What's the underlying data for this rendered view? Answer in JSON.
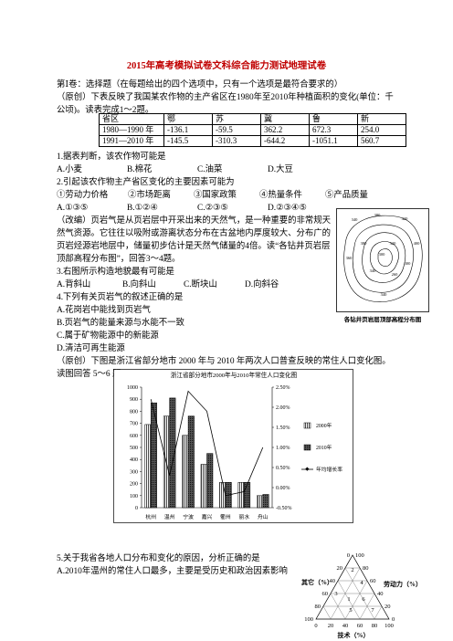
{
  "header": {
    "title": "2015年高考模拟试卷文科综合能力测试地理试卷"
  },
  "section": "第Ⅰ卷：选择题（在每题给出的四个选项中，只有一个选项是最符合要求的）",
  "intro1": "（原创）下表反映了我国某农作物的主产省区在1980年至2010年种植面积的变化(单位：千公顷)。读表完成1～2题。",
  "table": {
    "rows": [
      [
        "省区",
        "鄂",
        "苏",
        "冀",
        "鲁",
        "新"
      ],
      [
        "1980—1990 年",
        "-136.1",
        "-59.5",
        "362.2",
        "672.3",
        "254.0"
      ],
      [
        "1991—2010 年",
        "-145.5",
        "-310.3",
        "-644.2",
        "-1051.1",
        "560.7"
      ]
    ]
  },
  "questions": [
    {
      "stem": "1.据表判断，该农作物可能是",
      "options": [
        "A.小麦",
        "B.棉花",
        "C.油菜",
        "D.大豆"
      ]
    },
    {
      "stem": "2.引起该农作物主产省区变化的主要因素可能为",
      "items": [
        "①劳动力价格",
        "②市场距离",
        "③国家政策",
        "④热量条件",
        "⑤产品质量"
      ],
      "options": [
        "A.①③⑤",
        "B.①②④",
        "C.②③⑤",
        "D.②③④⑤"
      ]
    },
    {
      "stem": "3.右图所示构造地貌最有可能是",
      "options": [
        "A.背斜山",
        "B.向斜山",
        "C.断块山",
        "D.向斜谷"
      ]
    },
    {
      "stem": "4.下列有关页岩气的叙述正确的是",
      "options": [
        "A.花岗岩中能找到页岩气",
        "B.页岩气的能量来源与水能不一致",
        "C.属于矿物能源中的新能源",
        "D.清洁可再生能源"
      ]
    },
    {
      "stem": "5.关于我省各地人口分布和变化的原因，分析正确的是",
      "options": [
        "A.2010年温州的常住人口最多，主要是受历史和政治因素影响"
      ]
    }
  ],
  "intro2": "（改编）页岩气是从页岩层中开采出来的天然气，是一种重要的非常规天然气资源。它往往以吸附或游离状态分布在古盆地内厚度较大、分布广的页岩烃源岩地层中，储量初步估计是天然气储量的4倍。读“各钻井页岩层顶部高程分布图”，回答3～4题。",
  "intro3": "（原创）下图是浙江省部分地市 2000 年与 2010 年两次人口普查反映的常住人口变化图。读图回答 5～6 题。",
  "map": {
    "caption": "各钻井页岩层顶部高程分布图",
    "contour_labels": [
      "340",
      "380",
      "420",
      "400",
      "360",
      "300",
      "320",
      "380",
      "340",
      "260",
      "300",
      "340"
    ]
  },
  "chart": {
    "type": "bar",
    "title": "浙江省部分地市2000年与2010年常住人口变化图",
    "categories": [
      "杭州",
      "温州",
      "宁波",
      "嘉兴",
      "衢州",
      "丽水",
      "舟山"
    ],
    "series": [
      {
        "name": "2000年",
        "values": [
          690,
          760,
          600,
          360,
          210,
          210,
          100
        ]
      },
      {
        "name": "2010年",
        "values": [
          870,
          910,
          760,
          450,
          210,
          210,
          110
        ]
      },
      {
        "name": "年均增长率",
        "axis": "y2",
        "values": [
          2.2,
          0.3,
          2.4,
          1.9,
          -0.2,
          -0.1,
          1.0
        ]
      }
    ],
    "ylim": [
      0,
      1000
    ],
    "yticks": [
      0,
      100,
      200,
      300,
      400,
      500,
      600,
      700,
      800,
      900,
      1000
    ],
    "y2lim": [
      -0.5,
      2.5
    ],
    "y2ticks": [
      {
        "value": -0.5,
        "label": "-0.50%"
      },
      {
        "value": 0,
        "label": "0.00%"
      },
      {
        "value": 0.5,
        "label": "0.50%"
      },
      {
        "value": 1,
        "label": "1.00%"
      },
      {
        "value": 1.5,
        "label": "1.50%"
      },
      {
        "value": 2,
        "label": "2.00%"
      },
      {
        "value": 2.5,
        "label": "2.50%"
      }
    ]
  },
  "ternary": {
    "left_title": "其它（%）",
    "right_title": "劳动力（%）",
    "bottom_title": "技术（%）",
    "left_ticks": [
      0,
      20,
      40,
      60,
      80,
      100
    ],
    "right_ticks": [
      100,
      80,
      60,
      40,
      20,
      0
    ],
    "bottom_ticks": [
      0,
      20,
      40,
      60,
      80,
      100
    ],
    "points": [
      "2",
      "4",
      "3",
      "1",
      "6",
      "5",
      "7"
    ]
  }
}
